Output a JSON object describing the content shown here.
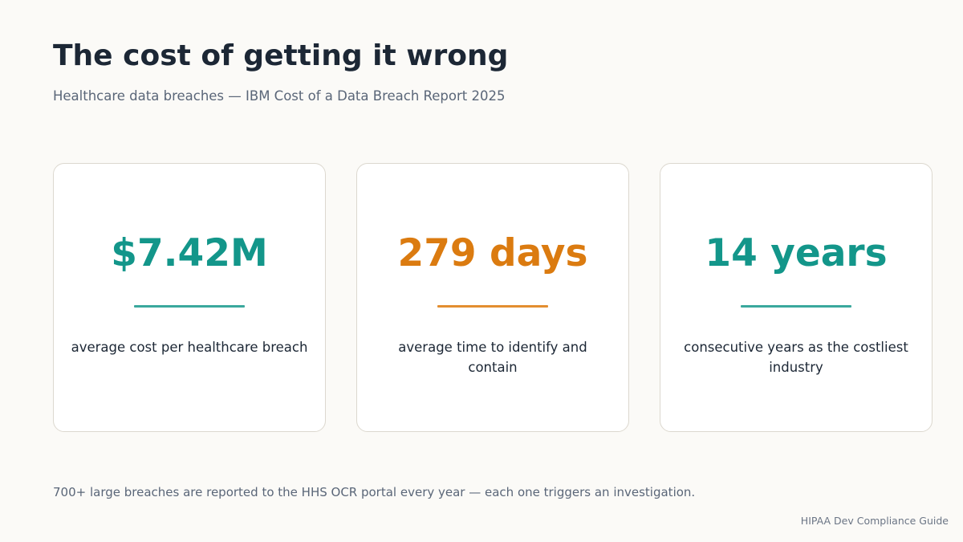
{
  "slide": {
    "title": "The cost of getting it wrong",
    "subtitle": "Healthcare data breaches — IBM Cost of a Data Breach Report 2025"
  },
  "stats": [
    {
      "value": "$7.42M",
      "description": "average cost per healthcare breach",
      "accent_color": "#13968a",
      "rule_color": "#3aa89d"
    },
    {
      "value": "279 days",
      "description": "average time to identify and contain",
      "accent_color": "#db7b10",
      "rule_color": "#e38e30"
    },
    {
      "value": "14 years",
      "description": "consecutive years as the costliest industry",
      "accent_color": "#13968a",
      "rule_color": "#3aa89d"
    }
  ],
  "footer": {
    "note": "700+ large breaches are reported to the HHS OCR portal every year — each one triggers an investigation.",
    "branding": "HIPAA Dev Compliance Guide"
  }
}
